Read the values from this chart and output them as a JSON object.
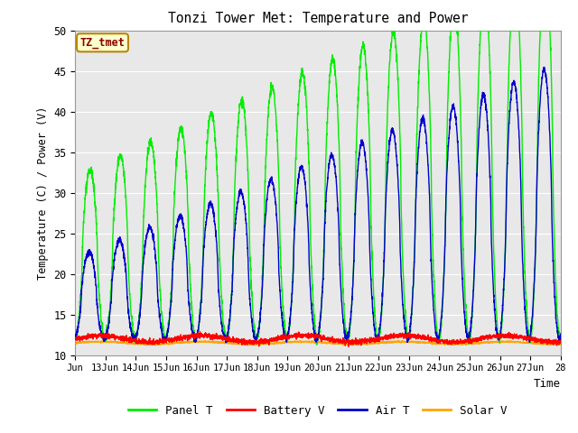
{
  "title": "Tonzi Tower Met: Temperature and Power",
  "xlabel": "Time",
  "ylabel": "Temperature (C) / Power (V)",
  "ylim": [
    10,
    50
  ],
  "xlim": [
    0,
    16
  ],
  "annotation_text": "TZ_tmet",
  "annotation_color": "#8B0000",
  "annotation_bg": "#FFFFCC",
  "annotation_border": "#B8860B",
  "bg_color": "#E8E8E8",
  "series": {
    "panel_t": {
      "color": "#00EE00",
      "label": "Panel T"
    },
    "battery_v": {
      "color": "#FF0000",
      "label": "Battery V"
    },
    "air_t": {
      "color": "#0000CC",
      "label": "Air T"
    },
    "solar_v": {
      "color": "#FFA500",
      "label": "Solar V"
    }
  },
  "xtick_labels": [
    "Jun",
    "13Jun",
    "14Jun",
    "15Jun",
    "16Jun",
    "17Jun",
    "18Jun",
    "19Jun",
    "20Jun",
    "21Jun",
    "22Jun",
    "23Jun",
    "24Jun",
    "25Jun",
    "26Jun",
    "27Jun",
    "28"
  ],
  "ytick_values": [
    10,
    15,
    20,
    25,
    30,
    35,
    40,
    45,
    50
  ],
  "legend_labels": [
    "Panel T",
    "Battery V",
    "Air T",
    "Solar V"
  ],
  "legend_colors": [
    "#00EE00",
    "#FF0000",
    "#0000CC",
    "#FFA500"
  ]
}
